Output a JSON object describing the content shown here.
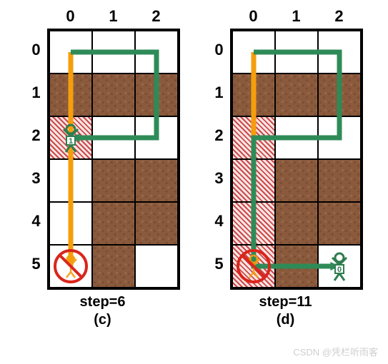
{
  "watermark": "CSDN @凭栏听雨客",
  "layout": {
    "cell_size": 60,
    "rows": 6,
    "cols": 3,
    "border_color": "#000000",
    "wall_color": "#8b5a3c",
    "hatched_stripe_a": "#fbe4e4",
    "hatched_stripe_b": "#c94a4a",
    "arrow_orange": "#f59e0b",
    "arrow_green": "#2e8b57",
    "forbidden_red": "#d9261c",
    "agent_outline": "#2e7d4f",
    "label_fontsize": 22,
    "caption_fontsize": 20
  },
  "panels": [
    {
      "id": "c",
      "step_label": "step=6",
      "sub_label": "(c)",
      "col_labels": [
        "0",
        "1",
        "2"
      ],
      "row_labels": [
        "0",
        "1",
        "2",
        "3",
        "4",
        "5"
      ],
      "walls": [
        [
          1,
          0
        ],
        [
          1,
          1
        ],
        [
          1,
          2
        ],
        [
          3,
          1
        ],
        [
          3,
          2
        ],
        [
          4,
          1
        ],
        [
          4,
          2
        ],
        [
          5,
          1
        ]
      ],
      "hatched": [
        [
          2,
          0
        ]
      ],
      "agents": [
        {
          "row": 2,
          "col": 0,
          "label": "1",
          "blocked": false
        }
      ],
      "forbidden": [
        {
          "row": 5,
          "col": 0
        }
      ],
      "orange_path": {
        "points": [
          [
            0,
            0
          ],
          [
            5,
            0
          ]
        ]
      },
      "green_path": {
        "points": [
          [
            0,
            0
          ],
          [
            0,
            2
          ],
          [
            2,
            2
          ],
          [
            2,
            0
          ]
        ]
      }
    },
    {
      "id": "d",
      "step_label": "step=11",
      "sub_label": "(d)",
      "col_labels": [
        "0",
        "1",
        "2"
      ],
      "row_labels": [
        "0",
        "1",
        "2",
        "3",
        "4",
        "5"
      ],
      "walls": [
        [
          1,
          0
        ],
        [
          1,
          1
        ],
        [
          1,
          2
        ],
        [
          3,
          1
        ],
        [
          3,
          2
        ],
        [
          4,
          1
        ],
        [
          4,
          2
        ],
        [
          5,
          1
        ]
      ],
      "hatched": [
        [
          2,
          0
        ],
        [
          3,
          0
        ],
        [
          4,
          0
        ],
        [
          5,
          0
        ]
      ],
      "agents": [
        {
          "row": 5,
          "col": 2,
          "label": "0",
          "blocked": false
        }
      ],
      "forbidden": [
        {
          "row": 5,
          "col": 0
        }
      ],
      "orange_path": {
        "points": [
          [
            0,
            0
          ],
          [
            5,
            0
          ]
        ]
      },
      "green_path": {
        "points": [
          [
            0,
            0
          ],
          [
            0,
            2
          ],
          [
            2,
            2
          ],
          [
            2,
            0
          ],
          [
            5,
            0
          ],
          [
            5,
            2
          ]
        ]
      }
    }
  ]
}
